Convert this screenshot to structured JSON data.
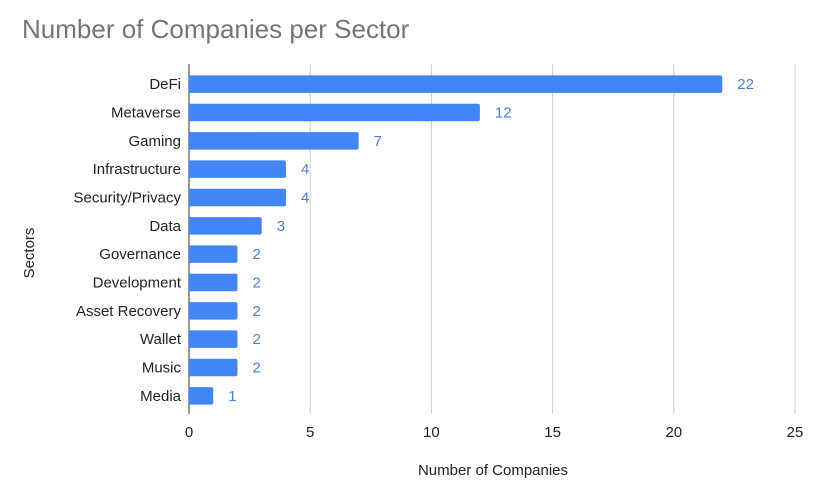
{
  "chart_data": {
    "type": "bar",
    "orientation": "horizontal",
    "title": "Number of Companies per Sector",
    "xlabel": "Number of Companies",
    "ylabel": "Sectors",
    "categories": [
      "DeFi",
      "Metaverse",
      "Gaming",
      "Infrastructure",
      "Security/Privacy",
      "Data",
      "Governance",
      "Development",
      "Asset Recovery",
      "Wallet",
      "Music",
      "Media"
    ],
    "values": [
      22,
      12,
      7,
      4,
      4,
      3,
      2,
      2,
      2,
      2,
      2,
      1
    ],
    "xlim": [
      0,
      25
    ],
    "xticks": [
      0,
      5,
      10,
      15,
      20,
      25
    ],
    "grid": true,
    "bar_color": "#4285f4",
    "label_color": "#4a7fd6",
    "legend": "none"
  }
}
